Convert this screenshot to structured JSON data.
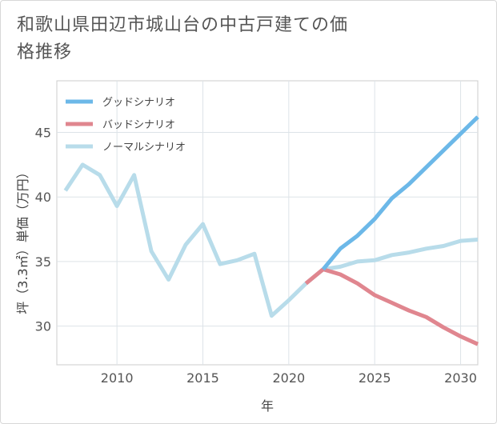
{
  "chart_data": {
    "type": "line",
    "title": "和歌山県田辺市城山台の中古戸建ての価格推移",
    "xlabel": "年",
    "ylabel": "坪（3.3㎡）単価（万円）",
    "xlim": [
      2006.5,
      2031
    ],
    "ylim": [
      27,
      49
    ],
    "x_ticks": [
      2010,
      2015,
      2020,
      2025,
      2030
    ],
    "y_ticks": [
      30,
      35,
      40,
      45
    ],
    "grid": true,
    "legend_position": "top-left",
    "series": [
      {
        "name": "グッドシナリオ",
        "color": "#6cb8e8",
        "points": [
          [
            2022,
            34.4
          ],
          [
            2023,
            36.0
          ],
          [
            2024,
            37.0
          ],
          [
            2025,
            38.3
          ],
          [
            2026,
            39.9
          ],
          [
            2027,
            41.0
          ],
          [
            2028,
            42.3
          ],
          [
            2029,
            43.6
          ],
          [
            2030,
            44.9
          ],
          [
            2031,
            46.2
          ]
        ]
      },
      {
        "name": "バッドシナリオ",
        "color": "#e0868f",
        "points": [
          [
            2021,
            33.3
          ],
          [
            2022,
            34.4
          ],
          [
            2023,
            34.0
          ],
          [
            2024,
            33.3
          ],
          [
            2025,
            32.4
          ],
          [
            2026,
            31.8
          ],
          [
            2027,
            31.2
          ],
          [
            2028,
            30.7
          ],
          [
            2029,
            29.9
          ],
          [
            2030,
            29.2
          ],
          [
            2031,
            28.6
          ]
        ]
      },
      {
        "name": "ノーマルシナリオ",
        "color": "#b8dcea",
        "points": [
          [
            2007,
            40.5
          ],
          [
            2008,
            42.5
          ],
          [
            2009,
            41.7
          ],
          [
            2010,
            39.3
          ],
          [
            2011,
            41.7
          ],
          [
            2012,
            35.8
          ],
          [
            2013,
            33.6
          ],
          [
            2014,
            36.3
          ],
          [
            2015,
            37.9
          ],
          [
            2016,
            34.8
          ],
          [
            2017,
            35.1
          ],
          [
            2018,
            35.6
          ],
          [
            2019,
            30.8
          ],
          [
            2020,
            32.0
          ],
          [
            2021,
            33.3
          ],
          [
            2022,
            34.4
          ],
          [
            2023,
            34.6
          ],
          [
            2024,
            35.0
          ],
          [
            2025,
            35.1
          ],
          [
            2026,
            35.5
          ],
          [
            2027,
            35.7
          ],
          [
            2028,
            36.0
          ],
          [
            2029,
            36.2
          ],
          [
            2030,
            36.6
          ],
          [
            2031,
            36.7
          ]
        ]
      }
    ]
  }
}
